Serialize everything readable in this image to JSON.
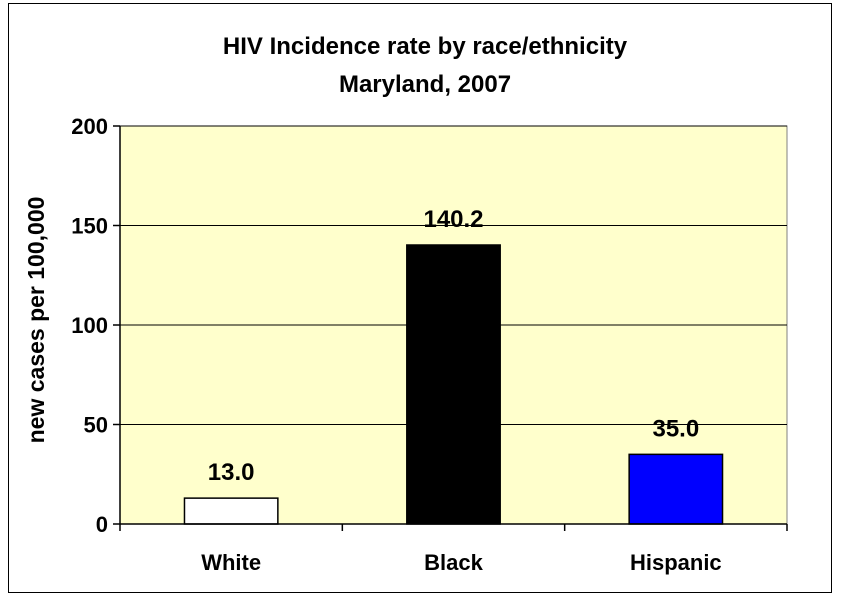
{
  "chart_data": {
    "type": "bar",
    "title_lines": [
      "HIV Incidence rate by race/ethnicity",
      "Maryland, 2007"
    ],
    "ylabel": "new cases per 100,000",
    "xlabel": "",
    "categories": [
      "White",
      "Black",
      "Hispanic"
    ],
    "values": [
      13.0,
      140.2,
      35.0
    ],
    "value_labels": [
      "13.0",
      "140.2",
      "35.0"
    ],
    "bar_colors": [
      "#ffffff",
      "#000000",
      "#0000ff"
    ],
    "ylim": [
      0,
      200
    ],
    "yticks": [
      0,
      50,
      100,
      150,
      200
    ],
    "grid": true,
    "legend": "none",
    "plot_background": "#ffffcc"
  }
}
